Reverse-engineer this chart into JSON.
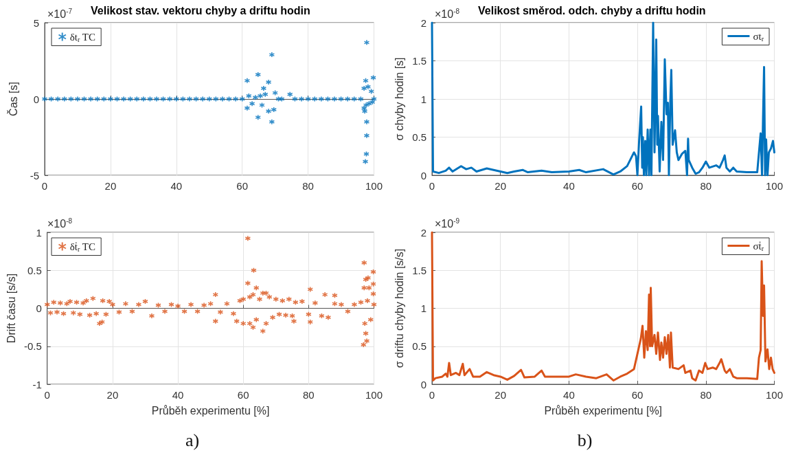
{
  "chart_data": [
    {
      "type": "scatter",
      "title": "Velikost stav. vektoru chyby a driftu hodin",
      "ylabel": "Čas [s]",
      "annotations": [
        "×10$^{-7}$"
      ],
      "xlim": [
        0,
        100
      ],
      "xticks": [
        0,
        20,
        40,
        60,
        80,
        100
      ],
      "ylim": [
        -5,
        5
      ],
      "yticks": [
        -5,
        0,
        5
      ],
      "grid": true,
      "legend": "top left",
      "marker": "cross",
      "series": [
        {
          "name": "δt$_{r}$ TC",
          "color": "#0072bd",
          "x": [
            0,
            2,
            4,
            6,
            8,
            10,
            12,
            14,
            16,
            18,
            20,
            22,
            24,
            26,
            28,
            30,
            32,
            34,
            36,
            38,
            40,
            42,
            44,
            46,
            48,
            50,
            52,
            54,
            56,
            58,
            60,
            61.5,
            61.5,
            62,
            63,
            64,
            64.8,
            64.8,
            65.5,
            66,
            66.5,
            67,
            68,
            68,
            69,
            69,
            69.6,
            70,
            71,
            72,
            74.5,
            76,
            78,
            80,
            82,
            84,
            86,
            88,
            90,
            92,
            94,
            96,
            97,
            97,
            97.2,
            97.4,
            97.5,
            97.6,
            97.7,
            97.8,
            97.8,
            97.8,
            98.2,
            98.5,
            99.2,
            99.5,
            99.8,
            100
          ],
          "values": [
            0,
            0,
            0,
            0,
            0,
            0,
            0,
            0,
            0,
            0,
            0,
            0,
            0,
            0,
            0,
            0,
            0,
            0,
            0,
            0,
            0,
            0,
            0,
            0,
            0,
            0,
            0,
            0,
            0,
            0,
            0,
            1.2,
            -0.6,
            0.2,
            -0.3,
            0.1,
            1.6,
            -1.2,
            0.2,
            -0.4,
            0.7,
            0.3,
            1.1,
            -0.8,
            2.9,
            -1.5,
            -0.7,
            0.4,
            0,
            0,
            0.3,
            0,
            0,
            0,
            0,
            0,
            0,
            0,
            0,
            0,
            0,
            0,
            0.7,
            -0.6,
            -0.8,
            -4.1,
            1.2,
            -0.4,
            -3.6,
            3.7,
            -1.5,
            -2.4,
            0.8,
            -0.3,
            0.5,
            -0.2,
            1.4,
            0
          ]
        }
      ]
    },
    {
      "type": "scatter",
      "xlabel": "Průběh experimentu [%]",
      "ylabel": "Drift času [s/s]",
      "annotations": [
        "×10$^{-8}$",
        "a)"
      ],
      "xlim": [
        0,
        100
      ],
      "xticks": [
        0,
        20,
        40,
        60,
        80,
        100
      ],
      "ylim": [
        -1,
        1
      ],
      "yticks": [
        -1,
        -0.5,
        0,
        0.5,
        1
      ],
      "grid": true,
      "legend": "top left",
      "marker": "cross",
      "series": [
        {
          "name": "δṫ$_{r}$ TC",
          "color": "#d95319",
          "x": [
            0,
            1,
            2,
            3,
            4,
            5,
            6,
            7,
            8,
            9,
            10,
            11,
            12,
            13,
            14,
            15,
            16,
            16.8,
            17,
            18,
            19,
            20,
            22,
            24,
            26,
            28,
            30,
            32,
            34,
            36,
            38,
            40,
            42,
            44,
            46,
            48,
            50,
            51.5,
            51.5,
            53,
            55,
            57,
            58,
            59,
            60,
            60,
            61.4,
            61.4,
            62,
            62,
            63,
            63,
            63.2,
            64,
            64,
            65,
            66,
            66,
            67,
            67,
            68,
            69,
            70,
            71,
            72,
            73,
            74,
            75,
            75.5,
            76,
            78,
            80,
            80.5,
            80.5,
            82,
            84,
            85,
            86,
            88,
            88,
            90,
            92,
            94,
            96,
            96.8,
            97,
            97,
            97.2,
            97.5,
            97.5,
            97.8,
            98,
            98.2,
            98.5,
            99,
            99.8,
            99.8,
            99.8,
            100
          ],
          "values": [
            0.05,
            -0.06,
            0.08,
            -0.05,
            0.07,
            -0.07,
            0.06,
            0.09,
            -0.06,
            0.08,
            -0.08,
            0.07,
            0.1,
            -0.09,
            0.13,
            -0.07,
            -0.2,
            -0.18,
            0.1,
            -0.08,
            0.09,
            0.05,
            -0.05,
            0.06,
            -0.04,
            0.05,
            0.09,
            -0.1,
            0.04,
            -0.04,
            0.05,
            0.03,
            -0.04,
            0.05,
            -0.04,
            0.04,
            0.06,
            -0.17,
            0.18,
            -0.05,
            0.06,
            -0.07,
            -0.17,
            0.1,
            -0.2,
            0.12,
            0.92,
            0.33,
            -0.2,
            0.15,
            -0.25,
            0.18,
            0.5,
            0.27,
            -0.15,
            0.12,
            -0.3,
            0.2,
            0.2,
            -0.2,
            0.15,
            -0.12,
            0.12,
            -0.08,
            0.1,
            -0.09,
            0.12,
            -0.1,
            -0.17,
            0.08,
            0.09,
            -0.08,
            0.25,
            -0.18,
            0.07,
            -0.1,
            0.18,
            -0.12,
            0.17,
            0.06,
            0.05,
            -0.04,
            0.05,
            0.08,
            -0.48,
            0.6,
            0.27,
            -0.2,
            -0.33,
            0.38,
            -0.43,
            0.1,
            0.4,
            0.27,
            -0.15,
            0.48,
            0.32,
            0.19,
            0.05
          ]
        }
      ]
    },
    {
      "type": "line",
      "title": "Velikost směrod. odch. chyby a driftu hodin",
      "ylabel": "σ chyby hodin [s]",
      "annotations": [
        "×10$^{-8}$"
      ],
      "xlim": [
        0,
        100
      ],
      "xticks": [
        0,
        20,
        40,
        60,
        80,
        100
      ],
      "ylim": [
        0,
        2
      ],
      "yticks": [
        0,
        0.5,
        1,
        1.5,
        2
      ],
      "grid": true,
      "legend": "top right",
      "series": [
        {
          "name": "σt$_{r}$",
          "color": "#0072bd",
          "x": [
            0,
            0.3,
            2,
            4,
            5,
            6,
            8.5,
            10,
            11.5,
            13,
            16,
            18,
            20,
            22,
            24,
            26.5,
            28,
            32,
            35,
            40,
            43,
            45,
            50,
            53,
            55,
            57,
            59,
            59.6,
            60,
            60.5,
            61.1,
            61.4,
            61.6,
            61.9,
            62.3,
            62.6,
            63,
            63.4,
            63.8,
            64.1,
            64.6,
            65,
            65.5,
            65.8,
            66,
            66.5,
            67,
            67.5,
            68,
            68.5,
            68.9,
            69.2,
            69.6,
            69.9,
            70.3,
            71,
            71.5,
            72,
            73,
            74,
            74.5,
            74.8,
            75,
            76,
            77,
            78,
            79,
            80,
            81,
            83,
            84,
            85,
            85.5,
            86,
            87,
            88,
            89,
            92,
            95,
            96,
            96.4,
            96.7,
            97,
            97.3,
            97.6,
            98,
            98.4,
            99,
            99.6,
            100
          ],
          "values": [
            2,
            0.05,
            0.03,
            0.06,
            0.1,
            0.05,
            0.12,
            0.08,
            0.1,
            0.05,
            0.09,
            0.07,
            0.05,
            0.03,
            0.05,
            0.07,
            0.04,
            0.06,
            0.04,
            0.05,
            0.07,
            0.04,
            0.08,
            0.01,
            0.05,
            0.12,
            0.3,
            0.25,
            0,
            0.45,
            0.9,
            0.1,
            0.5,
            0,
            0.45,
            0,
            0.6,
            0,
            0.6,
            0,
            2,
            0.3,
            1.78,
            0.4,
            0.78,
            0.05,
            0.7,
            0.2,
            1.52,
            0.8,
            0.95,
            0,
            0.95,
            1.38,
            0.4,
            0.59,
            0.3,
            0.2,
            0.28,
            0.32,
            0,
            0.48,
            0.2,
            0.1,
            0.02,
            0.04,
            0.1,
            0.18,
            0.1,
            0.13,
            0.1,
            0.2,
            0.26,
            0.1,
            0.05,
            0.1,
            0.05,
            0.04,
            0.04,
            0.55,
            0,
            0.75,
            1.42,
            0,
            0.47,
            0,
            0.3,
            0.35,
            0.45,
            0.3
          ]
        }
      ]
    },
    {
      "type": "line",
      "xlabel": "Průběh experimentu [%]",
      "ylabel": "σ driftu chyby hodin [s/s]",
      "annotations": [
        "×10$^{-9}$",
        "b)"
      ],
      "xlim": [
        0,
        100
      ],
      "xticks": [
        0,
        20,
        40,
        60,
        80,
        100
      ],
      "ylim": [
        0,
        2
      ],
      "yticks": [
        0,
        0.5,
        1,
        1.5,
        2
      ],
      "grid": true,
      "legend": "top right",
      "series": [
        {
          "name": "σṫ$_{r}$",
          "color": "#d95319",
          "x": [
            0,
            0.3,
            1,
            3,
            4,
            4.5,
            5,
            5.5,
            7,
            8,
            9,
            9.5,
            11,
            12,
            14,
            16,
            18,
            20,
            22,
            24,
            26,
            27,
            30,
            32,
            33,
            36,
            40,
            42,
            45,
            48,
            51,
            53,
            55,
            57,
            59,
            60,
            61,
            61.5,
            62,
            62.5,
            63,
            63.4,
            63.7,
            63.9,
            64.3,
            65,
            65.5,
            66,
            66.6,
            67,
            67.5,
            68,
            68.5,
            69,
            69.5,
            69.8,
            70.3,
            72,
            73.5,
            74,
            75.5,
            76,
            77,
            78,
            79,
            79.8,
            80.5,
            82,
            83,
            84,
            84.5,
            85.5,
            86,
            87,
            88,
            89,
            92,
            95,
            95.5,
            96,
            96.3,
            96.7,
            97,
            97.4,
            98,
            98.5,
            99,
            99.5,
            100
          ],
          "values": [
            2,
            0.05,
            0.08,
            0.1,
            0.14,
            0.1,
            0.28,
            0.12,
            0.15,
            0.12,
            0.27,
            0.12,
            0.2,
            0.1,
            0.1,
            0.16,
            0.12,
            0.1,
            0.06,
            0.11,
            0.19,
            0.09,
            0.1,
            0.18,
            0.1,
            0.1,
            0.1,
            0.13,
            0.1,
            0.08,
            0.13,
            0.05,
            0.1,
            0.14,
            0.2,
            0.4,
            0.6,
            0.77,
            0.35,
            0.7,
            0.45,
            1.18,
            0.5,
            1.27,
            0.5,
            0.65,
            0.4,
            0.68,
            0.32,
            0.55,
            0.35,
            0.62,
            0.4,
            0.65,
            0.22,
            0.68,
            0.22,
            0.2,
            0.25,
            0.15,
            0.18,
            0.08,
            0.05,
            0.18,
            0.15,
            0.28,
            0.2,
            0.22,
            0.2,
            0.28,
            0.33,
            0.18,
            0.15,
            0.2,
            0.1,
            0.08,
            0.08,
            0.07,
            0.35,
            0.45,
            1.62,
            0.9,
            1.3,
            0.3,
            0.46,
            0.2,
            0.35,
            0.2,
            0.15
          ]
        }
      ]
    }
  ]
}
